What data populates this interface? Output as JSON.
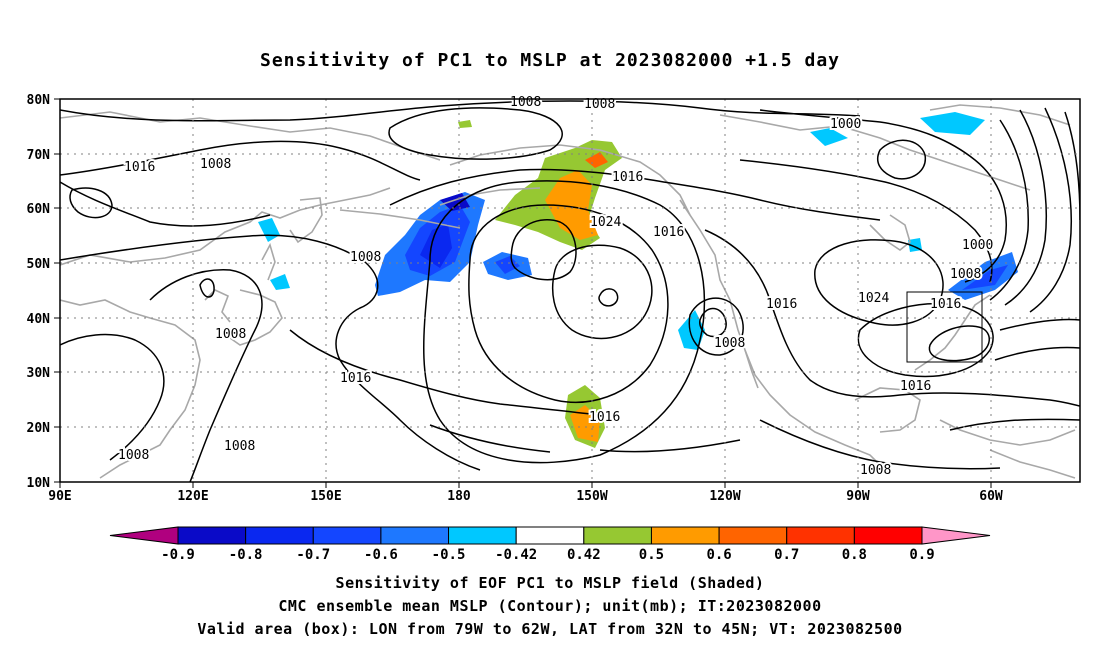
{
  "title": "Sensitivity of PC1 to MSLP at 2023082000 +1.5 day",
  "lat_labels": [
    "80N",
    "70N",
    "60N",
    "50N",
    "40N",
    "30N",
    "20N",
    "10N"
  ],
  "lon_labels": [
    "90E",
    "120E",
    "150E",
    "180",
    "150W",
    "120W",
    "90W",
    "60W"
  ],
  "contour_labels": [
    {
      "text": "1008"
    },
    {
      "text": "1008"
    },
    {
      "text": "1016"
    },
    {
      "text": "1008"
    },
    {
      "text": "1000"
    },
    {
      "text": "1016"
    },
    {
      "text": "1024"
    },
    {
      "text": "1016"
    },
    {
      "text": "1008"
    },
    {
      "text": "1000"
    },
    {
      "text": "1008"
    },
    {
      "text": "1024"
    },
    {
      "text": "1016"
    },
    {
      "text": "1008"
    },
    {
      "text": "1016"
    },
    {
      "text": "1008"
    },
    {
      "text": "1016"
    },
    {
      "text": "1016"
    },
    {
      "text": "1016"
    },
    {
      "text": "1008"
    },
    {
      "text": "1008"
    },
    {
      "text": "1008"
    }
  ],
  "colorbar": {
    "colors": [
      "#b0007f",
      "#0a0ac8",
      "#0a28f0",
      "#1446ff",
      "#1e78ff",
      "#00c8ff",
      "#ffffff",
      "#96c832",
      "#ff9b00",
      "#ff6400",
      "#ff3200",
      "#ff0000",
      "#ff96c8"
    ],
    "labels": [
      "-0.9",
      "-0.8",
      "-0.7",
      "-0.6",
      "-0.5",
      "-0.42",
      "0.42",
      "0.5",
      "0.6",
      "0.7",
      "0.8",
      "0.9"
    ]
  },
  "captions": [
    "Sensitivity of EOF PC1 to MSLP field (Shaded)",
    "CMC ensemble mean MSLP (Contour); unit(mb); IT:2023082000",
    "Valid area (box): LON from 79W to 62W, LAT from 32N to 45N; VT: 2023082500"
  ]
}
